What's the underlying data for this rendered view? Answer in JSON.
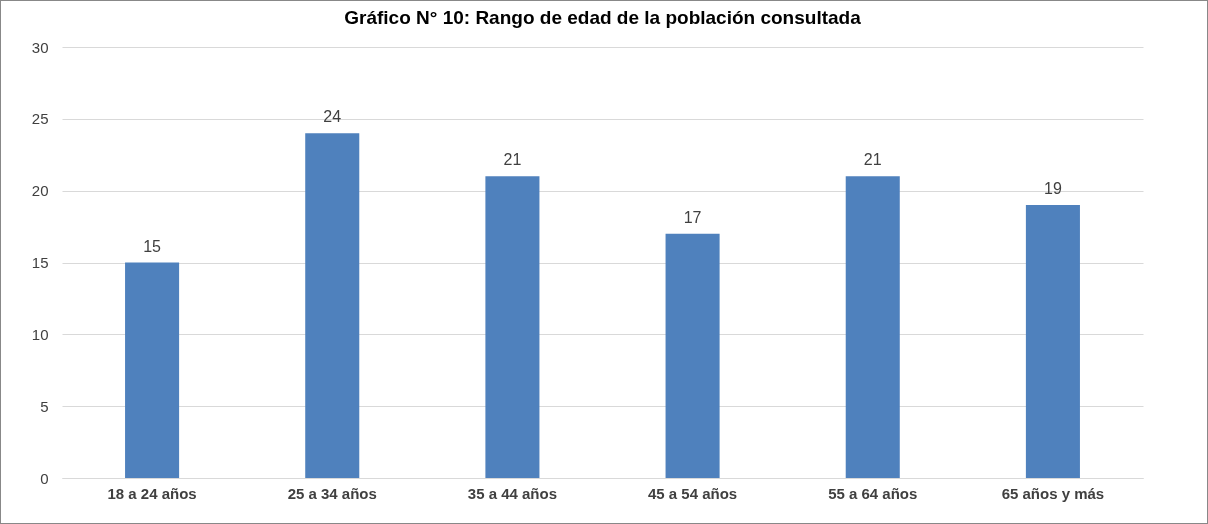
{
  "chart_data": {
    "type": "bar",
    "title": "Gráfico N° 10:        Rango de edad de la población consultada",
    "categories": [
      "18 a 24 años",
      "25 a 34 años",
      "35 a 44 años",
      "45 a 54 años",
      "55 a 64 años",
      "65 años y más"
    ],
    "values": [
      15,
      24,
      21,
      17,
      21,
      19
    ],
    "color": "#4f81bd",
    "ylim": [
      0,
      30
    ],
    "yticks": [
      0,
      5,
      10,
      15,
      20,
      25,
      30
    ],
    "grid": "y",
    "data_labels": true
  }
}
